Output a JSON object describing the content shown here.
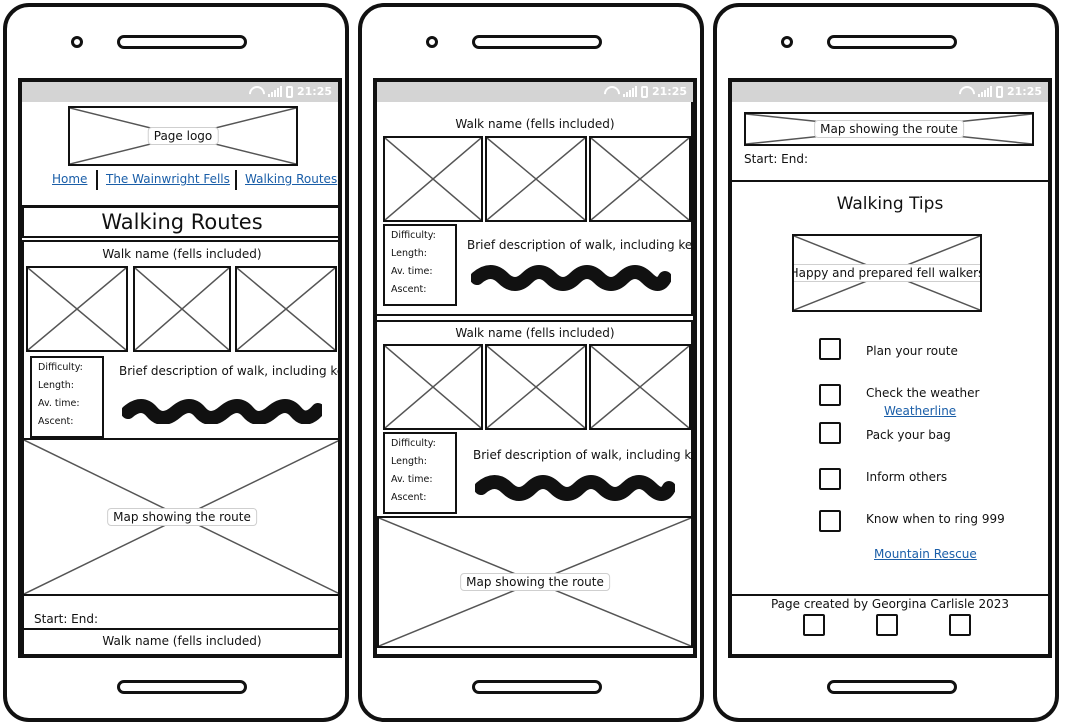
{
  "status_bar": {
    "time": "21:25"
  },
  "screen1": {
    "logo_label": "Page logo",
    "nav": [
      {
        "label": "Home"
      },
      {
        "label": "The Wainwright Fells"
      },
      {
        "label": "Walking Routes"
      }
    ],
    "page_title": "Walking Routes",
    "walk": {
      "name": "Walk name (fells included)",
      "stats": [
        "Difficulty:",
        "Length:",
        "Av. time:",
        "Ascent:"
      ],
      "description": "Brief description of walk, including key",
      "map_label": "Map showing the route",
      "start_end": "Start: End:"
    },
    "next_walk_name": "Walk name (fells included)"
  },
  "screen2": {
    "walks": [
      {
        "name": "Walk name (fells included)",
        "stats": [
          "Difficulty:",
          "Length:",
          "Av. time:",
          "Ascent:"
        ],
        "description": "Brief description of walk, including key"
      },
      {
        "name": "Walk name (fells included)",
        "stats": [
          "Difficulty:",
          "Length:",
          "Av. time:",
          "Ascent:"
        ],
        "description": "Brief description of walk, including key"
      }
    ],
    "map_label": "Map showing the route"
  },
  "screen3": {
    "map_label": "Map showing the route",
    "start_end": "Start: End:",
    "tips_title": "Walking Tips",
    "image_label": "Happy and prepared fell walkers",
    "tips": [
      {
        "label": "Plan your route"
      },
      {
        "label": "Check the weather",
        "link": "Weatherline"
      },
      {
        "label": "Pack your bag"
      },
      {
        "label": "Inform others"
      },
      {
        "label": "Know when to ring 999"
      }
    ],
    "rescue_link": "Mountain Rescue",
    "footer_text": "Page created by Georgina Carlisle 2023"
  }
}
